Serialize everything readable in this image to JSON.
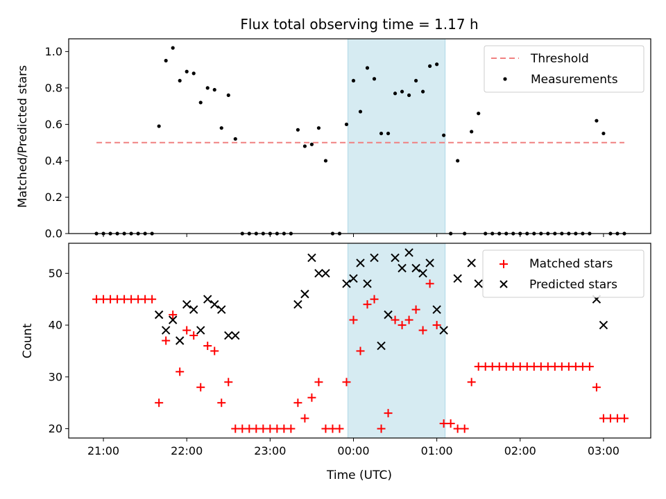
{
  "chart_data": [
    {
      "type": "scatter",
      "title": "Flux total observing time = 1.17 h",
      "xlabel": "",
      "ylabel": "Matched/Predicted stars",
      "ylim": [
        0,
        1.07
      ],
      "yticks": [
        "0.0",
        "0.2",
        "0.4",
        "0.6",
        "0.8",
        "1.0"
      ],
      "grid": false,
      "legend_position": "top-right",
      "highlight_window": [
        "23:56",
        "01:06"
      ],
      "threshold": {
        "name": "Threshold",
        "value": 0.5,
        "x_range": [
          "20:55",
          "03:15"
        ],
        "color": "#f08080"
      },
      "series": [
        {
          "name": "Measurements",
          "color": "#000000",
          "x": [
            "20:55",
            "21:00",
            "21:05",
            "21:10",
            "21:15",
            "21:20",
            "21:25",
            "21:30",
            "21:35",
            "21:40",
            "21:45",
            "21:50",
            "21:55",
            "22:00",
            "22:05",
            "22:10",
            "22:15",
            "22:20",
            "22:25",
            "22:30",
            "22:35",
            "22:40",
            "22:45",
            "22:50",
            "22:55",
            "23:00",
            "23:05",
            "23:10",
            "23:15",
            "23:20",
            "23:25",
            "23:30",
            "23:35",
            "23:40",
            "23:45",
            "23:50",
            "23:55",
            "00:00",
            "00:05",
            "00:10",
            "00:15",
            "00:20",
            "00:25",
            "00:30",
            "00:35",
            "00:40",
            "00:45",
            "00:50",
            "00:55",
            "01:00",
            "01:05",
            "01:10",
            "01:15",
            "01:20",
            "01:25",
            "01:30",
            "01:35",
            "01:40",
            "01:45",
            "01:50",
            "01:55",
            "02:00",
            "02:05",
            "02:10",
            "02:15",
            "02:20",
            "02:25",
            "02:30",
            "02:35",
            "02:40",
            "02:45",
            "02:50",
            "02:55",
            "03:00",
            "03:05",
            "03:10",
            "03:15"
          ],
          "y": [
            0,
            0,
            0,
            0,
            0,
            0,
            0,
            0,
            0,
            0.59,
            0.95,
            1.02,
            0.84,
            0.89,
            0.88,
            0.72,
            0.8,
            0.79,
            0.58,
            0.76,
            0.52,
            0,
            0,
            0,
            0,
            0,
            0,
            0,
            0,
            0.57,
            0.48,
            0.49,
            0.58,
            0.4,
            0,
            0,
            0.6,
            0.84,
            0.67,
            0.91,
            0.85,
            0.55,
            0.55,
            0.77,
            0.78,
            0.76,
            0.84,
            0.78,
            0.92,
            0.93,
            0.54,
            0,
            0.4,
            0,
            0.56,
            0.66,
            0,
            0,
            0,
            0,
            0,
            0,
            0,
            0,
            0,
            0,
            0,
            0,
            0,
            0,
            0,
            0,
            0.62,
            0.55,
            0,
            0,
            0
          ]
        }
      ]
    },
    {
      "type": "scatter",
      "title": "",
      "xlabel": "Time (UTC)",
      "ylabel": "Count",
      "ylim": [
        18.2,
        55.8
      ],
      "yticks": [
        "20",
        "30",
        "40",
        "50"
      ],
      "xticks": [
        "21:00",
        "22:00",
        "23:00",
        "00:00",
        "01:00",
        "02:00",
        "03:00"
      ],
      "grid": false,
      "legend_position": "top-right",
      "highlight_window": [
        "23:56",
        "01:06"
      ],
      "series": [
        {
          "name": "Matched stars",
          "marker": "plus",
          "color": "#ff0000",
          "x": [
            "20:55",
            "21:00",
            "21:05",
            "21:10",
            "21:15",
            "21:20",
            "21:25",
            "21:30",
            "21:35",
            "21:40",
            "21:45",
            "21:50",
            "21:55",
            "22:00",
            "22:05",
            "22:10",
            "22:15",
            "22:20",
            "22:25",
            "22:30",
            "22:35",
            "22:40",
            "22:45",
            "22:50",
            "22:55",
            "23:00",
            "23:05",
            "23:10",
            "23:15",
            "23:20",
            "23:25",
            "23:30",
            "23:35",
            "23:40",
            "23:45",
            "23:50",
            "23:55",
            "00:00",
            "00:05",
            "00:10",
            "00:15",
            "00:20",
            "00:25",
            "00:30",
            "00:35",
            "00:40",
            "00:45",
            "00:50",
            "00:55",
            "01:00",
            "01:05",
            "01:10",
            "01:15",
            "01:20",
            "01:25",
            "01:30",
            "01:35",
            "01:40",
            "01:45",
            "01:50",
            "01:55",
            "02:00",
            "02:05",
            "02:10",
            "02:15",
            "02:20",
            "02:25",
            "02:30",
            "02:35",
            "02:40",
            "02:45",
            "02:50",
            "02:55",
            "03:00",
            "03:05",
            "03:10",
            "03:15"
          ],
          "y": [
            45,
            45,
            45,
            45,
            45,
            45,
            45,
            45,
            45,
            25,
            37,
            42,
            31,
            39,
            38,
            28,
            36,
            35,
            25,
            29,
            20,
            20,
            20,
            20,
            20,
            20,
            20,
            20,
            20,
            25,
            22,
            26,
            29,
            20,
            20,
            20,
            29,
            41,
            35,
            44,
            45,
            20,
            23,
            41,
            40,
            41,
            43,
            39,
            48,
            40,
            21,
            21,
            20,
            20,
            29,
            32,
            32,
            32,
            32,
            32,
            32,
            32,
            32,
            32,
            32,
            32,
            32,
            32,
            32,
            32,
            32,
            32,
            28,
            22,
            22,
            22,
            22
          ]
        },
        {
          "name": "Predicted stars",
          "marker": "x",
          "color": "#000000",
          "x": [
            "21:40",
            "21:45",
            "21:50",
            "21:55",
            "22:00",
            "22:05",
            "22:10",
            "22:15",
            "22:20",
            "22:25",
            "22:30",
            "22:35",
            "23:20",
            "23:25",
            "23:30",
            "23:35",
            "23:40",
            "23:55",
            "00:00",
            "00:05",
            "00:10",
            "00:15",
            "00:20",
            "00:25",
            "00:30",
            "00:35",
            "00:40",
            "00:45",
            "00:50",
            "00:55",
            "01:00",
            "01:05",
            "01:15",
            "01:25",
            "01:30",
            "02:55",
            "03:00"
          ],
          "y": [
            42,
            39,
            41,
            37,
            44,
            43,
            39,
            45,
            44,
            43,
            38,
            38,
            44,
            46,
            53,
            50,
            50,
            48,
            49,
            52,
            48,
            53,
            36,
            42,
            53,
            51,
            54,
            51,
            50,
            52,
            43,
            39,
            49,
            52,
            48,
            45,
            40
          ]
        }
      ]
    }
  ]
}
